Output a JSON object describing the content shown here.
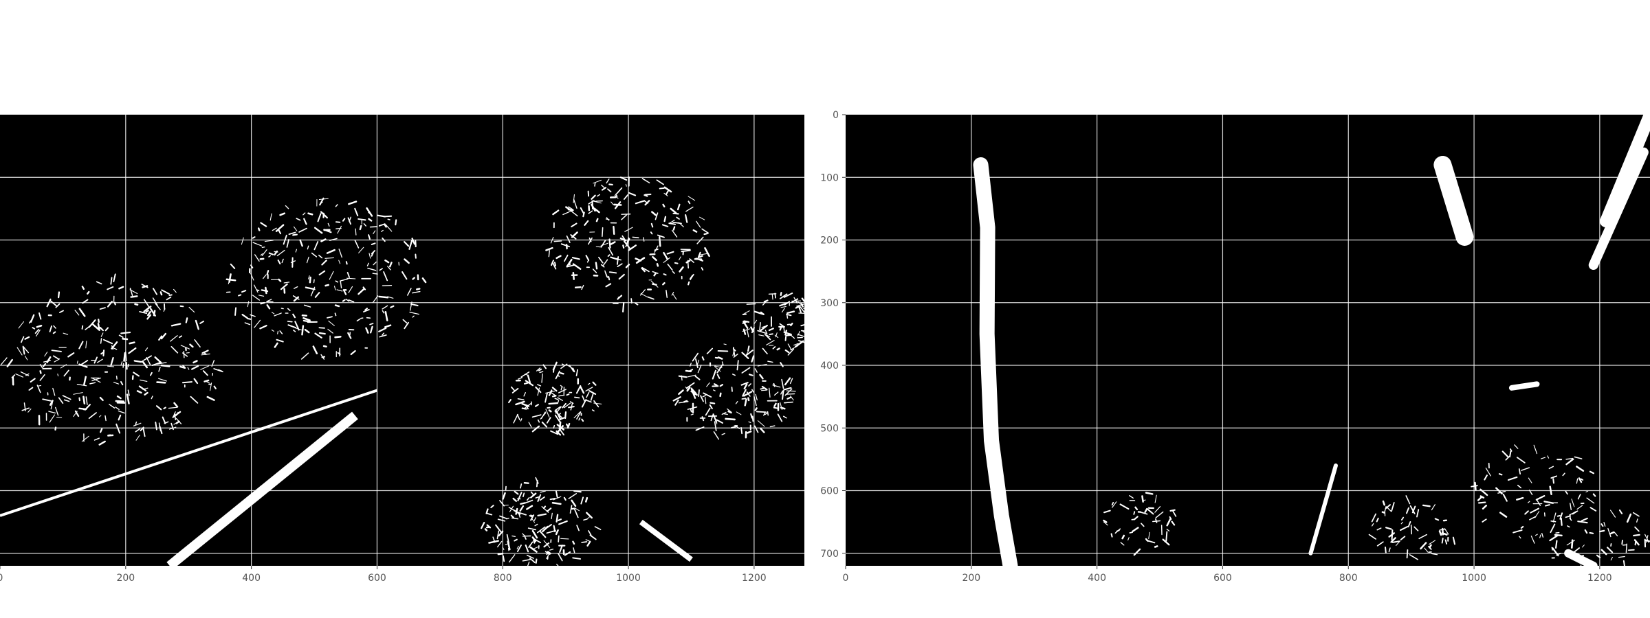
{
  "chart_data": [
    {
      "type": "image",
      "description_role": "left-panel",
      "xlim": [
        0,
        1280
      ],
      "ylim": [
        720,
        0
      ],
      "x_ticks": [
        0,
        200,
        400,
        600,
        800,
        1000,
        1200
      ],
      "y_ticks": [],
      "grid": true,
      "title": "",
      "xlabel": "",
      "ylabel": "",
      "image_content": {
        "background": "#000000",
        "foreground": "#ffffff",
        "lane_stripes": [
          {
            "points": [
              [
                270,
                720
              ],
              [
                565,
                480
              ]
            ],
            "width": 14
          },
          {
            "points": [
              [
                0,
                640
              ],
              [
                600,
                440
              ]
            ],
            "width": 4
          },
          {
            "points": [
              [
                1020,
                650
              ],
              [
                1100,
                710
              ]
            ],
            "width": 8
          }
        ],
        "edge_clusters": [
          {
            "cx": 520,
            "cy": 260,
            "r": 160
          },
          {
            "cx": 1000,
            "cy": 200,
            "r": 130
          },
          {
            "cx": 880,
            "cy": 450,
            "r": 70
          },
          {
            "cx": 1170,
            "cy": 440,
            "r": 95
          },
          {
            "cx": 180,
            "cy": 390,
            "r": 170
          },
          {
            "cx": 1240,
            "cy": 330,
            "r": 60
          },
          {
            "cx": 860,
            "cy": 650,
            "r": 90
          }
        ]
      }
    },
    {
      "type": "image",
      "description_role": "right-panel",
      "xlim": [
        0,
        1280
      ],
      "ylim": [
        720,
        0
      ],
      "x_ticks": [
        0,
        200,
        400,
        600,
        800,
        1000,
        1200
      ],
      "y_ticks": [
        0,
        100,
        200,
        300,
        400,
        500,
        600,
        700
      ],
      "grid": true,
      "title": "",
      "xlabel": "",
      "ylabel": "",
      "image_content": {
        "background": "#000000",
        "foreground": "#ffffff",
        "lane_lines": [
          {
            "points": [
              [
                215,
                80
              ],
              [
                226,
                180
              ],
              [
                225,
                350
              ],
              [
                232,
                520
              ],
              [
                248,
                640
              ],
              [
                262,
                720
              ]
            ],
            "width": 22
          }
        ],
        "blobs": [
          {
            "points": [
              [
                950,
                80
              ],
              [
                985,
                195
              ]
            ],
            "width": 26
          },
          {
            "points": [
              [
                1280,
                0
              ],
              [
                1210,
                170
              ]
            ],
            "width": 18
          },
          {
            "points": [
              [
                1270,
                60
              ],
              [
                1190,
                240
              ]
            ],
            "width": 14
          },
          {
            "points": [
              [
                780,
                560
              ],
              [
                740,
                700
              ]
            ],
            "width": 6
          },
          {
            "points": [
              [
                1060,
                436
              ],
              [
                1100,
                430
              ]
            ],
            "width": 8
          },
          {
            "points": [
              [
                1150,
                700
              ],
              [
                1190,
                720
              ]
            ],
            "width": 12
          }
        ],
        "speckle_clusters": [
          {
            "cx": 470,
            "cy": 650,
            "r": 60
          },
          {
            "cx": 900,
            "cy": 660,
            "r": 70
          },
          {
            "cx": 1100,
            "cy": 600,
            "r": 100
          },
          {
            "cx": 1200,
            "cy": 680,
            "r": 80
          }
        ]
      }
    }
  ]
}
